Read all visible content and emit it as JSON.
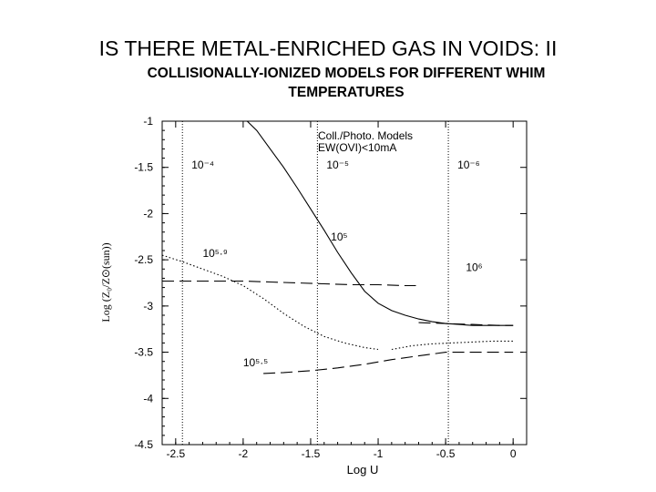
{
  "slide": {
    "title": "IS THERE METAL-ENRICHED GAS IN VOIDS: II",
    "subtitle": "COLLISIONALLY-IONIZED MODELS FOR DIFFERENT WHIM TEMPERATURES"
  },
  "chart_data": {
    "type": "line",
    "xlabel": "Log U",
    "ylabel": "Log (Z₀/Z⊙(sun))",
    "xlim": [
      -2.6,
      0.1
    ],
    "ylim": [
      -4.5,
      -1.0
    ],
    "xticks": [
      -2.5,
      -2,
      -1.5,
      -1,
      -0.5,
      0
    ],
    "yticks": [
      -1,
      -1.5,
      -2,
      -2.5,
      -3,
      -3.5,
      -4,
      -4.5
    ],
    "legend": [
      "Coll./Photo. Models",
      "EW(OVI)<10mA"
    ],
    "density_markers": [
      {
        "x": -2.45,
        "label": "10⁻⁴"
      },
      {
        "x": -1.45,
        "label": "10⁻⁵"
      },
      {
        "x": -0.48,
        "label": "10⁻⁶"
      }
    ],
    "series": [
      {
        "name": "10⁵",
        "style": "solid",
        "x": [
          -1.97,
          -1.9,
          -1.8,
          -1.7,
          -1.6,
          -1.5,
          -1.4,
          -1.3,
          -1.2,
          -1.1,
          -1.0,
          -0.9,
          -0.8,
          -0.7,
          -0.6,
          -0.5,
          -0.4,
          -0.3,
          -0.2,
          -0.1,
          0.0
        ],
        "y": [
          -1.0,
          -1.1,
          -1.3,
          -1.5,
          -1.72,
          -1.95,
          -2.18,
          -2.42,
          -2.64,
          -2.84,
          -2.97,
          -3.05,
          -3.1,
          -3.14,
          -3.17,
          -3.19,
          -3.2,
          -3.21,
          -3.21,
          -3.21,
          -3.21
        ]
      },
      {
        "name": "10⁶",
        "style": "dashed",
        "x": [
          -2.6,
          -2.4,
          -2.2,
          -2.0,
          -1.8,
          -1.6,
          -1.4,
          -1.2,
          -1.0,
          -0.8,
          -0.72
        ],
        "y": [
          -2.73,
          -2.73,
          -2.73,
          -2.73,
          -2.74,
          -2.75,
          -2.76,
          -2.77,
          -2.77,
          -2.78,
          -2.78
        ]
      },
      {
        "name": "10⁵·⁹",
        "style": "dotted",
        "x": [
          -2.6,
          -2.45,
          -2.3,
          -2.15,
          -2.0,
          -1.85,
          -1.7,
          -1.55,
          -1.4,
          -1.25,
          -1.1,
          -1.0
        ],
        "y": [
          -2.45,
          -2.52,
          -2.6,
          -2.68,
          -2.78,
          -2.92,
          -3.08,
          -3.22,
          -3.33,
          -3.4,
          -3.45,
          -3.47
        ]
      },
      {
        "name": "10⁵·⁵",
        "style": "dashed",
        "x": [
          -1.85,
          -1.7,
          -1.5,
          -1.3,
          -1.1,
          -0.9,
          -0.7,
          -0.5,
          -0.3,
          -0.1,
          0.0
        ],
        "y": [
          -3.73,
          -3.72,
          -3.7,
          -3.67,
          -3.63,
          -3.58,
          -3.54,
          -3.5,
          -3.5,
          -3.5,
          -3.5
        ]
      },
      {
        "name": "10⁵·⁹ (continued)",
        "style": "dotted",
        "x": [
          -0.9,
          -0.75,
          -0.6,
          -0.45,
          -0.3,
          -0.15,
          0.0
        ],
        "y": [
          -3.47,
          -3.43,
          -3.41,
          -3.4,
          -3.39,
          -3.38,
          -3.38
        ]
      },
      {
        "name": "10⁵ (continued)",
        "style": "dashed",
        "x": [
          -0.7,
          -0.5,
          -0.3,
          -0.1,
          0.0
        ],
        "y": [
          -3.18,
          -3.19,
          -3.2,
          -3.21,
          -3.21
        ]
      }
    ],
    "curve_labels": [
      {
        "text": "10⁵",
        "x": -1.35,
        "y": -2.29
      },
      {
        "text": "10⁶",
        "x": -0.35,
        "y": -2.62
      },
      {
        "text": "10⁵·⁹",
        "x": -2.3,
        "y": -2.47
      },
      {
        "text": "10⁵·⁵",
        "x": -2.0,
        "y": -3.65
      }
    ]
  }
}
